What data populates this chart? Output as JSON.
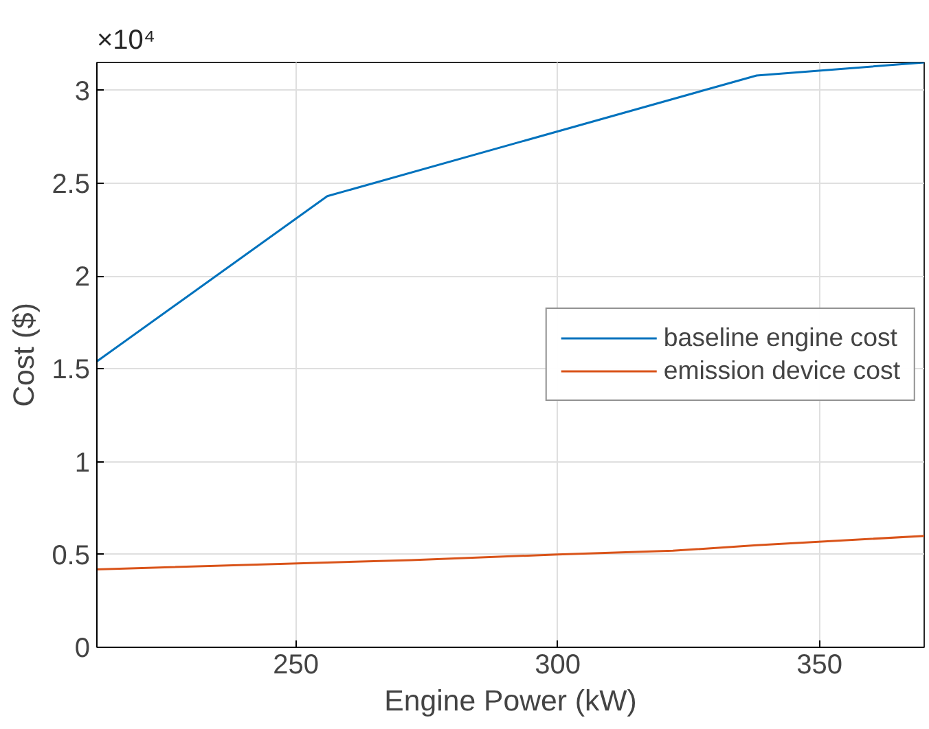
{
  "chart_data": {
    "type": "line",
    "xlabel": "Engine Power (kW)",
    "ylabel": "Cost ($)",
    "annotations": [
      "×10⁴"
    ],
    "series": [
      {
        "name": "baseline engine cost",
        "color": "#0072bd",
        "x": [
          212,
          256,
          338,
          370
        ],
        "values": [
          1.54,
          2.43,
          3.08,
          3.15
        ]
      },
      {
        "name": "emission device cost",
        "color": "#d95319",
        "x": [
          212,
          272,
          300,
          322,
          338,
          370
        ],
        "values": [
          0.42,
          0.47,
          0.5,
          0.52,
          0.55,
          0.6
        ]
      }
    ],
    "xlim": [
      212,
      370
    ],
    "ylim": [
      0,
      3.15
    ],
    "xticks": [
      250,
      300,
      350
    ],
    "yticks": [
      0,
      0.5,
      1,
      1.5,
      2,
      2.5,
      3
    ],
    "grid": true,
    "legend": "right",
    "marker": "none",
    "line_style": "solid"
  }
}
